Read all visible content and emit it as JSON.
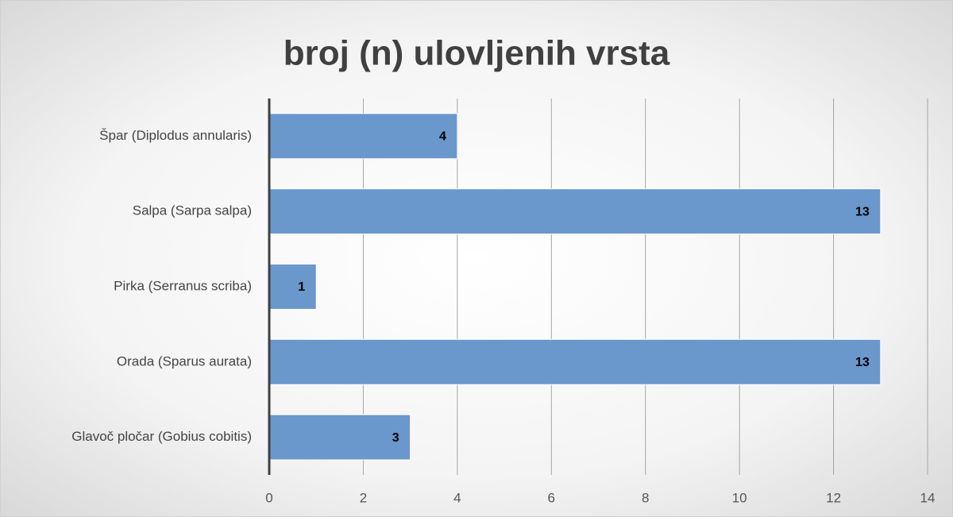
{
  "chart_data": {
    "type": "bar",
    "orientation": "horizontal",
    "title": "broj (n) ulovljenih vrsta",
    "categories": [
      "Špar (Diplodus annularis)",
      "Salpa (Sarpa salpa)",
      "Pirka (Serranus scriba)",
      "Orada (Sparus aurata)",
      "Glavoč pločar (Gobius cobitis)"
    ],
    "values": [
      4,
      13,
      1,
      13,
      3
    ],
    "color": "#6a97cc",
    "xlim": [
      0,
      14
    ],
    "xticks": [
      0,
      2,
      4,
      6,
      8,
      10,
      12,
      14
    ],
    "grid": true
  }
}
